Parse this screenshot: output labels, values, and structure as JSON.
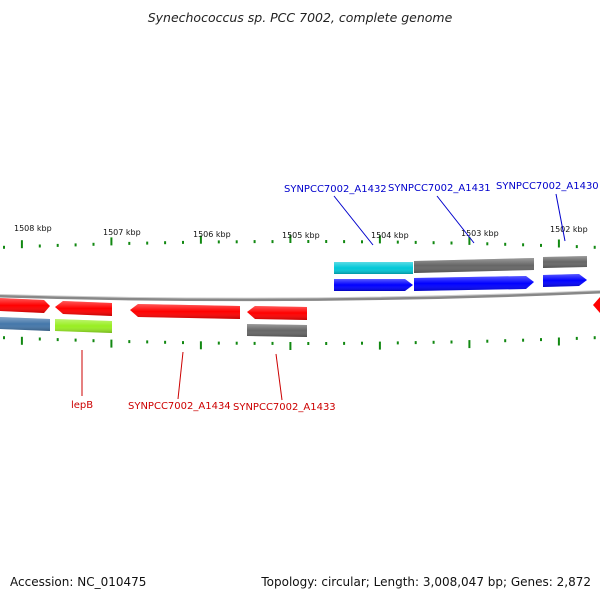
{
  "title": "Synechococcus sp. PCC 7002, complete genome",
  "accession_text": "Accession: NC_010475",
  "summary_text": "Topology: circular; Length: 3,008,047 bp; Genes: 2,872",
  "colors": {
    "forward_cds": "#0000ff",
    "reverse_cds": "#ff0000",
    "other_feature": "#666666",
    "cyan_feature": "#00c8d8",
    "lime_feature": "#99ee22",
    "steel_feature": "#4477aa",
    "tick": "#118811",
    "backbone": "#888888"
  },
  "scale_labels": [
    "1508 kbp",
    "1507 kbp",
    "1506 kbp",
    "1505 kbp",
    "1504 kbp",
    "1503 kbp",
    "1502 kbp"
  ],
  "gene_labels": [
    "SYNPCC7002_A1432",
    "SYNPCC7002_A1431",
    "SYNPCC7002_A1430",
    "lepB",
    "SYNPCC7002_A1434",
    "SYNPCC7002_A1433"
  ]
}
